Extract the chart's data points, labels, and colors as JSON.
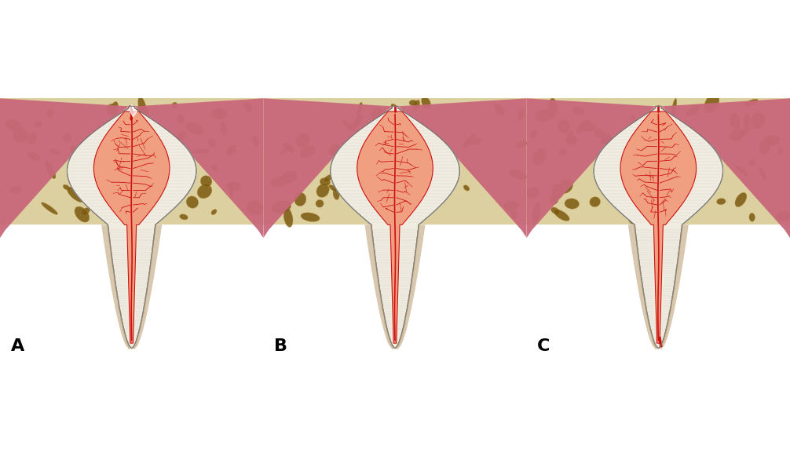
{
  "labels": [
    "A",
    "B",
    "C"
  ],
  "label_fontsize": 16,
  "label_fontweight": "bold",
  "label_color": "#000000",
  "background_color": "#ffffff",
  "figwidth": 10.06,
  "figheight": 5.86,
  "dpi": 100,
  "bone_color": "#ddd0a0",
  "bone_dark_color": "#7a5a10",
  "bone_medium_color": "#b89040",
  "dentin_color": "#f0ece0",
  "dentin_inner_color": "#e8e0d0",
  "pulp_color": "#f0a080",
  "pulp_light_color": "#f4c0a0",
  "blood_color": "#cc1111",
  "gum_color": "#c8687a",
  "gum_light_color": "#d88090",
  "pdl_color": "#e0c8b8",
  "root_dentin_color": "#e8e0d0",
  "enamel_edge_color": "#c8c8c8",
  "cementum_color": "#c8aa80",
  "white_color": "#f8f8f8"
}
